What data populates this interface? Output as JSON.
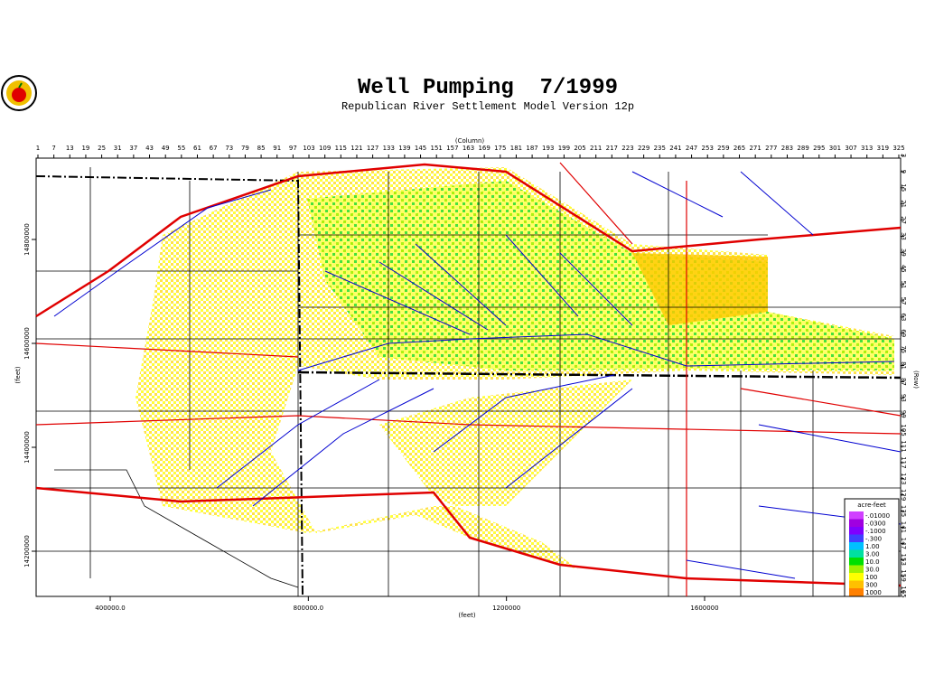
{
  "header": {
    "title": "Well Pumping  7/1999",
    "subtitle": "Republican River Settlement Model Version 12p"
  },
  "column_axis": {
    "label": "(Column)",
    "ticks": [
      1,
      7,
      13,
      19,
      25,
      31,
      37,
      43,
      49,
      55,
      61,
      67,
      73,
      79,
      85,
      91,
      97,
      103,
      109,
      115,
      121,
      127,
      133,
      139,
      145,
      151,
      157,
      163,
      169,
      175,
      181,
      187,
      193,
      199,
      205,
      211,
      217,
      223,
      229,
      235,
      241,
      247,
      253,
      259,
      265,
      271,
      277,
      283,
      289,
      295,
      301,
      307,
      313,
      319,
      325
    ]
  },
  "row_axis": {
    "label": "(Row)",
    "ticks": [
      3,
      9,
      15,
      21,
      27,
      33,
      39,
      45,
      51,
      57,
      63,
      69,
      75,
      81,
      87,
      93,
      99,
      105,
      111,
      117,
      123,
      129,
      135,
      141,
      147,
      153,
      159,
      165
    ]
  },
  "x_axis": {
    "label": "(feet)",
    "ticks": [
      {
        "value": 400000,
        "label": "400000.0"
      },
      {
        "value": 800000,
        "label": "800000.0"
      },
      1200000,
      1600000
    ]
  },
  "y_axis": {
    "label": "(feet)",
    "ticks": [
      14800000,
      14600000,
      14400000,
      14200000
    ]
  },
  "legend": {
    "title": "acre-feet",
    "entries": [
      {
        "label": "-.01000",
        "color": "#d040ff"
      },
      {
        "label": "-.0300",
        "color": "#a000e0"
      },
      {
        "label": "-.1000",
        "color": "#8000ff"
      },
      {
        "label": "-.300",
        "color": "#4040ff"
      },
      {
        "label": "1.00",
        "color": "#00c0ff"
      },
      {
        "label": "3.00",
        "color": "#00e0a0"
      },
      {
        "label": "10.0",
        "color": "#00e000"
      },
      {
        "label": "30.0",
        "color": "#a0f000"
      },
      {
        "label": "100",
        "color": "#ffff00"
      },
      {
        "label": "300",
        "color": "#ffc000"
      },
      {
        "label": "1000",
        "color": "#ff8000"
      }
    ]
  }
}
